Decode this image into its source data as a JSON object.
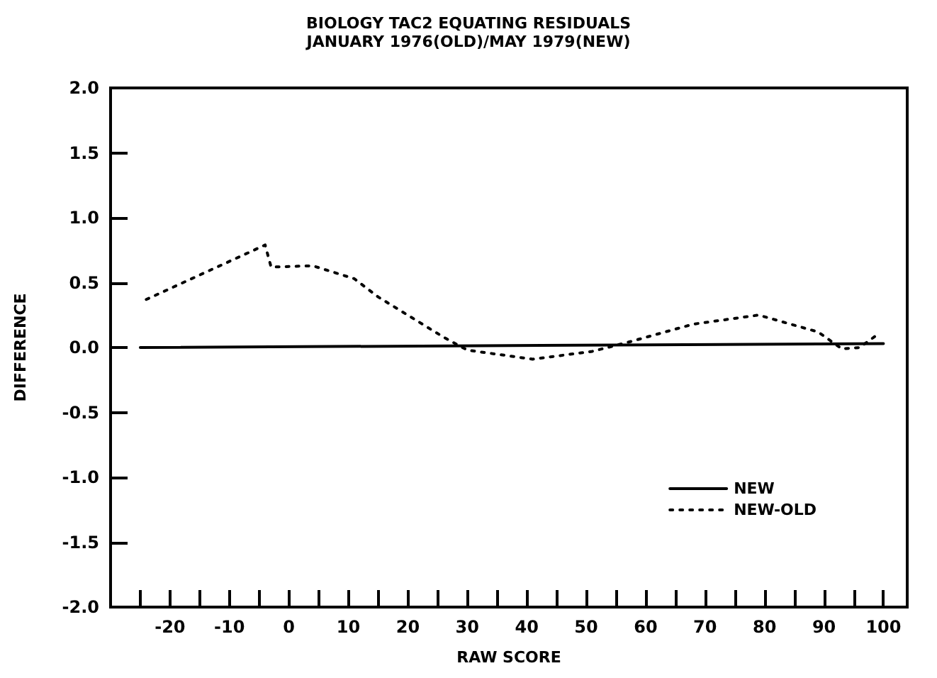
{
  "chart_data": {
    "type": "line",
    "title": "BIOLOGY TAC2 EQUATING RESIDUALS",
    "subtitle": "JANUARY 1976(OLD)/MAY 1979(NEW)",
    "xlabel": "RAW SCORE",
    "ylabel": "DIFFERENCE",
    "xlim": [
      -30,
      104
    ],
    "xticks": [
      {
        "value": -25,
        "label": null
      },
      -20,
      {
        "value": -15,
        "label": null
      },
      -10,
      {
        "value": -5,
        "label": null
      },
      0,
      {
        "value": 5,
        "label": null
      },
      10,
      {
        "value": 15,
        "label": null
      },
      20,
      {
        "value": 25,
        "label": null
      },
      30,
      {
        "value": 35,
        "label": null
      },
      40,
      {
        "value": 45,
        "label": null
      },
      50,
      {
        "value": 55,
        "label": null
      },
      60,
      {
        "value": 65,
        "label": null
      },
      70,
      {
        "value": 75,
        "label": null
      },
      80,
      {
        "value": 85,
        "label": null
      },
      90,
      {
        "value": 95,
        "label": null
      },
      100
    ],
    "ylim": [
      -2,
      2
    ],
    "yticks": [
      {
        "value": -2,
        "label": "-2.0"
      },
      {
        "value": -1.5,
        "label": "-1.5"
      },
      {
        "value": -1,
        "label": "-1.0"
      },
      {
        "value": -0.5,
        "label": "-0.5"
      },
      {
        "value": 0,
        "label": "0.0"
      },
      {
        "value": 0.5,
        "label": "0.5"
      },
      {
        "value": 1,
        "label": "1.0"
      },
      {
        "value": 1.5,
        "label": "1.5"
      },
      {
        "value": 2,
        "label": "2.0"
      }
    ],
    "grid": false,
    "legend": "bottom right",
    "marker": "none",
    "series": [
      {
        "name": "NEW",
        "color": "#000000",
        "line_style": "solid",
        "x": [
          -25,
          100
        ],
        "values": [
          0,
          0.03
        ]
      },
      {
        "name": "NEW-OLD",
        "color": "#000000",
        "line_style": "dotted",
        "x": [
          -24,
          -4,
          -3,
          4,
          11,
          15,
          26,
          30,
          41,
          51,
          57,
          68,
          79,
          89,
          93,
          96,
          99
        ],
        "values": [
          0.37,
          0.79,
          0.62,
          0.63,
          0.53,
          0.39,
          0.08,
          -0.02,
          -0.09,
          -0.03,
          0.04,
          0.18,
          0.25,
          0.12,
          -0.01,
          0,
          0.1
        ]
      }
    ]
  }
}
